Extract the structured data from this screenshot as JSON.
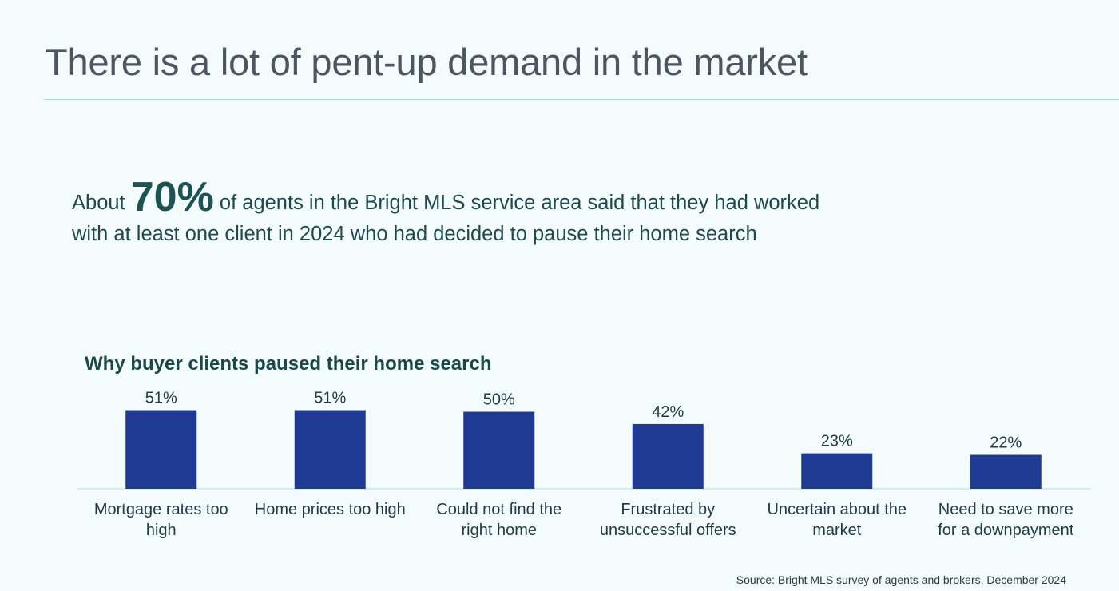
{
  "page": {
    "title": "There is a lot of pent-up demand in the market"
  },
  "headline": {
    "prefix": "About",
    "highlight": "70%",
    "line1_rest": "of agents in the Bright MLS service area said that they had worked",
    "line2": "with at least one client in 2024 who had decided to pause their home search"
  },
  "source": "Source: Bright MLS survey of agents and brokers, December 2024",
  "colors": {
    "bar": "#1f3a93",
    "baseline": "#c9e8ec",
    "label_text": "#1f3b44",
    "background": "#f3fbfd"
  },
  "chart_data": {
    "type": "bar",
    "title": "Why buyer clients paused their home search",
    "categories": [
      [
        "Mortgage rates too",
        "high"
      ],
      [
        "Home prices too high"
      ],
      [
        "Could not find the",
        "right home"
      ],
      [
        "Frustrated by",
        "unsuccessful offers"
      ],
      [
        "Uncertain about the",
        "market"
      ],
      [
        "Need to save more",
        "for a downpayment"
      ]
    ],
    "values": [
      51,
      51,
      50,
      42,
      23,
      22
    ],
    "data_labels": [
      "51%",
      "51%",
      "50%",
      "42%",
      "23%",
      "22%"
    ],
    "value_format": "percent",
    "xlabel": "",
    "ylabel": "",
    "ylim": [
      0,
      100
    ],
    "grid": false,
    "legend": "none"
  }
}
